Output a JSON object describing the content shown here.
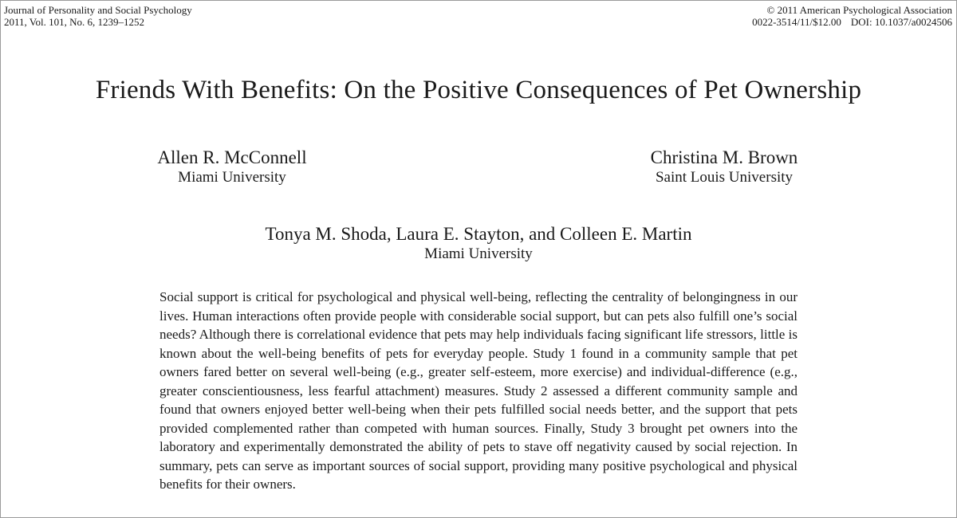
{
  "header": {
    "journal_name": "Journal of Personality and Social Psychology",
    "citation": "2011, Vol. 101, No. 6, 1239–1252",
    "copyright": "© 2011 American Psychological Association",
    "price_code": "0022-3514/11/$12.00",
    "doi": "DOI: 10.1037/a0024506"
  },
  "article": {
    "title": "Friends With Benefits: On the Positive Consequences of Pet Ownership",
    "authors": [
      {
        "name": "Allen R. McConnell",
        "affiliation": "Miami University"
      },
      {
        "name": "Christina M. Brown",
        "affiliation": "Saint Louis University"
      },
      {
        "name": "Tonya M. Shoda, Laura E. Stayton, and Colleen E. Martin",
        "affiliation": "Miami University"
      }
    ],
    "abstract": "Social support is critical for psychological and physical well-being, reflecting the centrality of belongingness in our lives. Human interactions often provide people with considerable social support, but can pets also fulfill one’s social needs? Although there is correlational evidence that pets may help individuals facing significant life stressors, little is known about the well-being benefits of pets for everyday people. Study 1 found in a community sample that pet owners fared better on several well-being (e.g., greater self-esteem, more exercise) and individual-difference (e.g., greater conscientiousness, less fearful attachment) measures. Study 2 assessed a different community sample and found that owners enjoyed better well-being when their pets fulfilled social needs better, and the support that pets provided complemented rather than competed with human sources. Finally, Study 3 brought pet owners into the laboratory and experimentally demonstrated the ability of pets to stave off negativity caused by social rejection. In summary, pets can serve as important sources of social support, providing many positive psychological and physical benefits for their owners."
  }
}
